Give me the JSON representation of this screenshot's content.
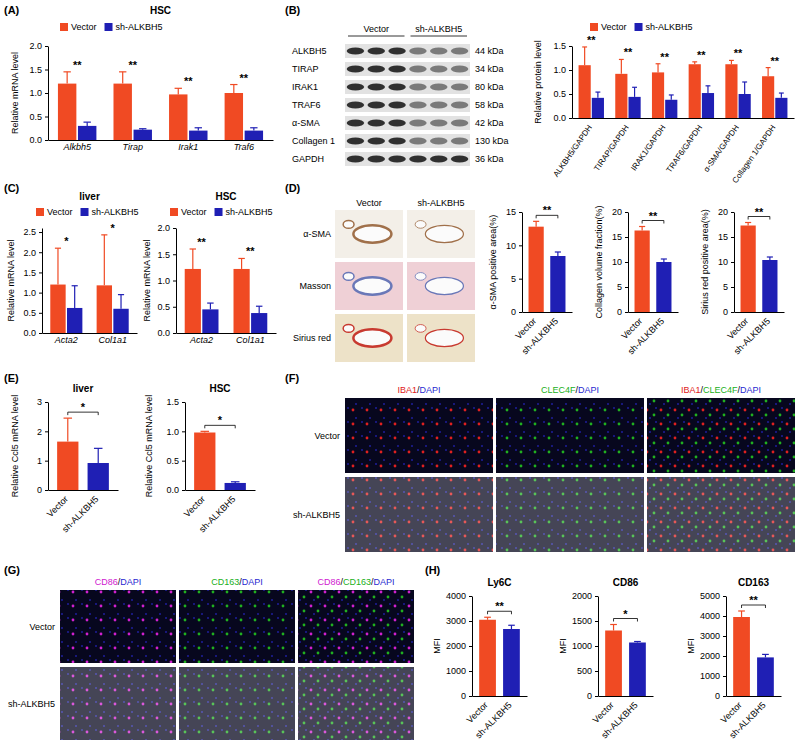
{
  "panel_labels": [
    "(A)",
    "(B)",
    "(C)",
    "(D)",
    "(E)",
    "(F)",
    "(G)",
    "(H)"
  ],
  "chart_data": [
    {
      "type": "bar",
      "title": "HSC",
      "ylabel": "Relative mRNA level",
      "categories": [
        "Alkbh5",
        "Tirap",
        "Irak1",
        "Traf6"
      ],
      "series": [
        {
          "name": "Vector",
          "color": "#f04a23",
          "values": [
            1.2,
            1.2,
            0.97,
            1.0
          ],
          "errors": [
            0.25,
            0.25,
            0.13,
            0.18
          ]
        },
        {
          "name": "sh-ALKBH5",
          "color": "#1f1fb4",
          "values": [
            0.3,
            0.22,
            0.2,
            0.2
          ],
          "errors": [
            0.08,
            0.02,
            0.06,
            0.06
          ]
        }
      ],
      "ylim": [
        0,
        2
      ],
      "yticks": [
        {
          "value": 0,
          "label": "0.0"
        },
        {
          "value": 0.5,
          "label": "0.5"
        },
        {
          "value": 1,
          "label": "1.0"
        },
        {
          "value": 1.5,
          "label": "1.5"
        },
        {
          "value": 2,
          "label": "2.0"
        }
      ],
      "annotations": [
        "**",
        "**",
        "**",
        "**"
      ],
      "legend": "top"
    },
    {
      "type": "bar",
      "ylabel": "Relative protein level",
      "categories": [
        "ALKBH5/GAPDH",
        "TIRAP/GAPDH",
        "IRAK1/GAPDH",
        "TRAF6/GAPDH",
        "α-SMA/GAPDH",
        "Collagen 1/GAPDH"
      ],
      "series": [
        {
          "name": "Vector",
          "color": "#f04a23",
          "values": [
            1.1,
            0.92,
            0.95,
            1.12,
            1.12,
            0.87
          ],
          "errors": [
            0.38,
            0.3,
            0.18,
            0.05,
            0.08,
            0.18
          ]
        },
        {
          "name": "sh-ALKBH5",
          "color": "#1f1fb4",
          "values": [
            0.42,
            0.44,
            0.38,
            0.52,
            0.5,
            0.42
          ],
          "errors": [
            0.12,
            0.2,
            0.1,
            0.15,
            0.25,
            0.1
          ]
        }
      ],
      "ylim": [
        0,
        1.5
      ],
      "yticks": [
        {
          "value": 0,
          "label": "0.0"
        },
        {
          "value": 0.5,
          "label": "0.5"
        },
        {
          "value": 1,
          "label": "1.0"
        },
        {
          "value": 1.5,
          "label": "1.5"
        }
      ],
      "annotations": [
        "**",
        "**",
        "**",
        "**",
        "**",
        "**"
      ],
      "legend": "top"
    },
    {
      "type": "bar",
      "title": "liver",
      "ylabel": "Relative mRNA level",
      "categories": [
        "Acta2",
        "Col1a1"
      ],
      "series": [
        {
          "name": "Vector",
          "color": "#f04a23",
          "values": [
            1.2,
            1.18
          ],
          "errors": [
            0.9,
            1.25
          ]
        },
        {
          "name": "sh-ALKBH5",
          "color": "#1f1fb4",
          "values": [
            0.62,
            0.6
          ],
          "errors": [
            0.55,
            0.35
          ]
        }
      ],
      "ylim": [
        0,
        2.6
      ],
      "yticks": [
        {
          "value": 0,
          "label": "0.0"
        },
        {
          "value": 0.5,
          "label": "0.5"
        },
        {
          "value": 1,
          "label": "1.0"
        },
        {
          "value": 1.5,
          "label": "1.5"
        },
        {
          "value": 2,
          "label": "2.0"
        },
        {
          "value": 2.5,
          "label": "2.5"
        }
      ],
      "annotations": [
        "*",
        "*"
      ],
      "legend": "top"
    },
    {
      "type": "bar",
      "title": "HSC",
      "ylabel": "Relative mRNA level",
      "categories": [
        "Acta2",
        "Col1a1"
      ],
      "series": [
        {
          "name": "Vector",
          "color": "#f04a23",
          "values": [
            1.22,
            1.22
          ],
          "errors": [
            0.38,
            0.2
          ]
        },
        {
          "name": "sh-ALKBH5",
          "color": "#1f1fb4",
          "values": [
            0.45,
            0.38
          ],
          "errors": [
            0.12,
            0.13
          ]
        }
      ],
      "ylim": [
        0,
        2
      ],
      "yticks": [
        {
          "value": 0,
          "label": "0.0"
        },
        {
          "value": 0.5,
          "label": "0.5"
        },
        {
          "value": 1,
          "label": "1.0"
        },
        {
          "value": 1.5,
          "label": "1.5"
        },
        {
          "value": 2,
          "label": "2.0"
        }
      ],
      "annotations": [
        "**",
        "**"
      ],
      "legend": "top"
    },
    {
      "type": "bar",
      "ylabel": "α-SMA positive area(%)",
      "categories": [
        "Vector",
        "sh-ALKBH5"
      ],
      "values": [
        12.8,
        8.4
      ],
      "errors": [
        0.8,
        0.6
      ],
      "colors": [
        "#f04a23",
        "#1f1fb4"
      ],
      "ylim": [
        0,
        15
      ],
      "yticks": [
        0,
        5,
        10,
        15
      ],
      "annotations": [
        "**"
      ]
    },
    {
      "type": "bar",
      "ylabel": "Collagen volume fraction(%)",
      "categories": [
        "Vector",
        "sh-ALKBH5"
      ],
      "values": [
        16.3,
        10.0
      ],
      "errors": [
        0.8,
        0.6
      ],
      "colors": [
        "#f04a23",
        "#1f1fb4"
      ],
      "ylim": [
        0,
        20
      ],
      "yticks": [
        0,
        5,
        10,
        15,
        20
      ],
      "annotations": [
        "**"
      ]
    },
    {
      "type": "bar",
      "ylabel": "Sirius red positive area(%)",
      "categories": [
        "Vector",
        "sh-ALKBH5"
      ],
      "values": [
        17.3,
        10.4
      ],
      "errors": [
        0.6,
        0.6
      ],
      "colors": [
        "#f04a23",
        "#1f1fb4"
      ],
      "ylim": [
        0,
        20
      ],
      "yticks": [
        0,
        5,
        10,
        15,
        20
      ],
      "annotations": [
        "**"
      ]
    },
    {
      "type": "bar",
      "title": "liver",
      "ylabel": "Relative Ccl5 mRNA level",
      "categories": [
        "Vector",
        "sh-ALKBH5"
      ],
      "values": [
        1.65,
        0.92
      ],
      "errors": [
        0.8,
        0.5
      ],
      "colors": [
        "#f04a23",
        "#1f1fb4"
      ],
      "ylim": [
        0,
        3
      ],
      "yticks": [
        0,
        1,
        2,
        3
      ],
      "annotations": [
        "*"
      ]
    },
    {
      "type": "bar",
      "title": "HSC",
      "ylabel": "Relative Ccl5 mRNA level",
      "categories": [
        "Vector",
        "sh-ALKBH5"
      ],
      "values": [
        0.98,
        0.12
      ],
      "errors": [
        0.02,
        0.02
      ],
      "colors": [
        "#f04a23",
        "#1f1fb4"
      ],
      "ylim": [
        0,
        1.5
      ],
      "yticks": [
        {
          "value": 0,
          "label": "0.0"
        },
        {
          "value": 0.5,
          "label": "0.5"
        },
        {
          "value": 1,
          "label": "1.0"
        },
        {
          "value": 1.5,
          "label": "1.5"
        }
      ],
      "annotations": [
        "*"
      ]
    },
    {
      "type": "bar",
      "title": "Ly6C",
      "ylabel": "MFI",
      "categories": [
        "Vector",
        "sh-ALKBH5"
      ],
      "values": [
        3050,
        2680
      ],
      "errors": [
        100,
        150
      ],
      "colors": [
        "#f04a23",
        "#1f1fb4"
      ],
      "ylim": [
        0,
        4000
      ],
      "yticks": [
        0,
        1000,
        2000,
        3000,
        4000
      ],
      "annotations": [
        "**"
      ]
    },
    {
      "type": "bar",
      "title": "CD86",
      "ylabel": "MFI",
      "categories": [
        "Vector",
        "sh-ALKBH5"
      ],
      "values": [
        1310,
        1070
      ],
      "errors": [
        120,
        20
      ],
      "colors": [
        "#f04a23",
        "#1f1fb4"
      ],
      "ylim": [
        0,
        2000
      ],
      "yticks": [
        0,
        500,
        1000,
        1500,
        2000
      ],
      "annotations": [
        "*"
      ]
    },
    {
      "type": "bar",
      "title": "CD163",
      "ylabel": "MFI",
      "categories": [
        "Vector",
        "sh-ALKBH5"
      ],
      "values": [
        3950,
        1930
      ],
      "errors": [
        300,
        150
      ],
      "colors": [
        "#f04a23",
        "#1f1fb4"
      ],
      "ylim": [
        0,
        5000
      ],
      "yticks": [
        0,
        1000,
        2000,
        3000,
        4000,
        5000
      ],
      "annotations": [
        "**"
      ]
    }
  ],
  "images": [
    {
      "columns": [
        "Vector",
        "sh-ALKBH5"
      ],
      "rows": [
        "ALKBH5",
        "TIRAP",
        "IRAK1",
        "TRAF6",
        "α-SMA",
        "Collagen 1",
        "GAPDH"
      ],
      "sizes": [
        "44 kDa",
        "34 kDa",
        "80 kDa",
        "58 kDa",
        "42 kDa",
        "130 kDa",
        "36 kDa"
      ]
    },
    {
      "columns": [
        "Vector",
        "sh-ALKBH5"
      ],
      "rows": [
        "α-SMA",
        "Masson",
        "Sirius red"
      ]
    },
    {
      "columns": [
        "IBA1/DAPI",
        "CLEC4F/DAPI",
        "IBA1/CLEC4F/DAPI"
      ],
      "rows": [
        "Vector",
        "sh-ALKBH5"
      ],
      "channel_colors": {
        "IBA1": "#e02020",
        "CLEC4F": "#20b020",
        "DAPI": "#2828d0"
      }
    },
    {
      "columns": [
        "CD86/DAPI",
        "CD163/DAPI",
        "CD86/CD163/DAPI"
      ],
      "rows": [
        "Vector",
        "sh-ALKBH5"
      ],
      "channel_colors": {
        "CD86": "#d020d0",
        "CD163": "#20b020",
        "DAPI": "#2828d0"
      }
    }
  ]
}
